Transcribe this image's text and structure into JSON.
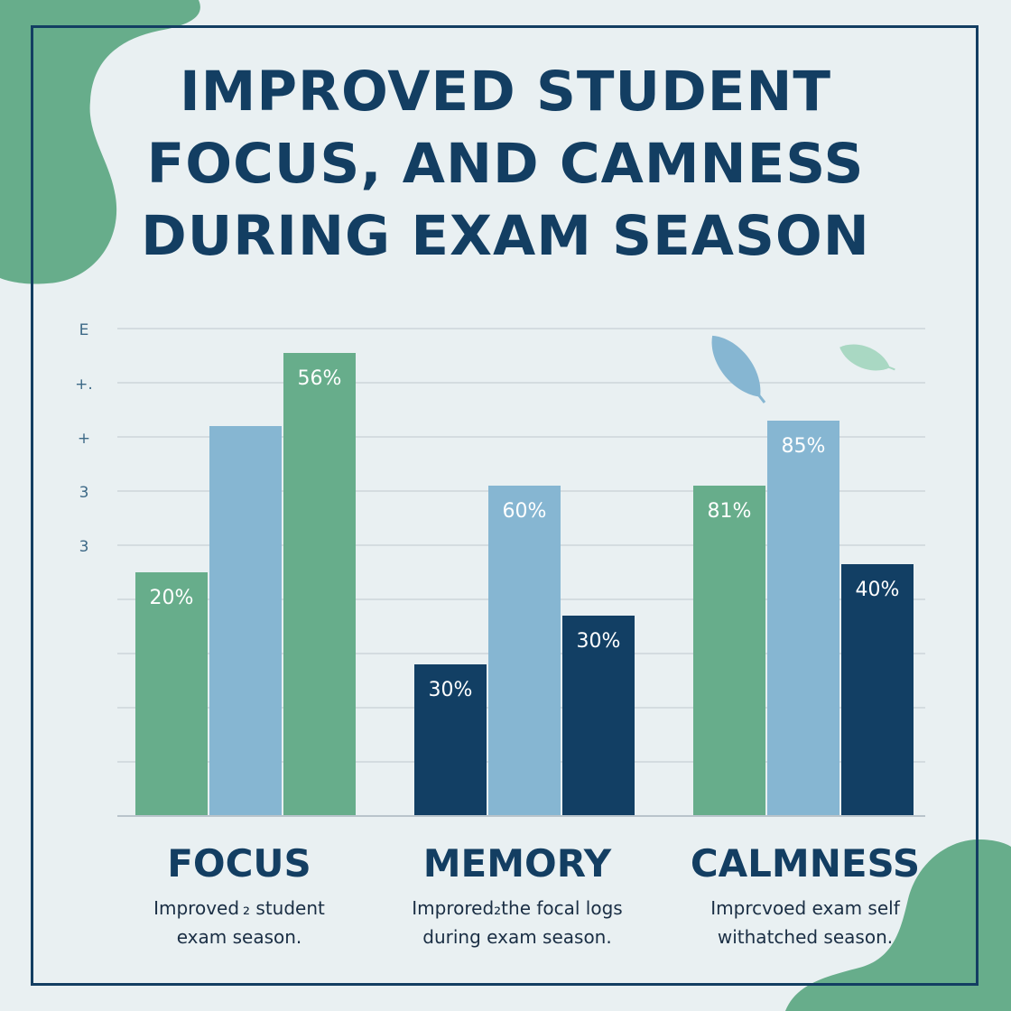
{
  "title": "IMPROVED STUDENT FOCUS, AND CAMNESS DURING EXAM SEASON",
  "colors": {
    "background": "#e9f0f2",
    "frame": "#133e62",
    "title": "#133e62",
    "green": "#67ad8b",
    "light_blue": "#86b6d2",
    "navy": "#123f64",
    "grid": "#cdd5da",
    "tick": "#3d6987"
  },
  "chart_data": {
    "type": "bar",
    "title": "IMPROVED STUDENT FOCUS, AND CAMNESS DURING EXAM SEASON",
    "xlabel": "",
    "ylabel": "",
    "y_tick_labels": [
      "E",
      "+.",
      "+",
      "3",
      "3"
    ],
    "ylim": [
      0,
      9
    ],
    "grid": true,
    "categories": [
      "FOCUS",
      "MEMORY",
      "CALMNESS"
    ],
    "category_descriptions": [
      [
        "Improved ₂ student",
        "exam season."
      ],
      [
        "Improred₂the focal logs",
        "during exam season."
      ],
      [
        "Imprcvoed exam self",
        "withatched season."
      ]
    ],
    "bars": [
      [
        {
          "color": "green",
          "value": 4.5,
          "label": "20%"
        },
        {
          "color": "light_blue",
          "value": 7.2,
          "label": ""
        },
        {
          "color": "green",
          "value": 8.55,
          "label": "56%"
        }
      ],
      [
        {
          "color": "navy",
          "value": 2.8,
          "label": "30%"
        },
        {
          "color": "light_blue",
          "value": 6.1,
          "label": "60%"
        },
        {
          "color": "navy",
          "value": 3.7,
          "label": "30%"
        }
      ],
      [
        {
          "color": "green",
          "value": 6.1,
          "label": "81%"
        },
        {
          "color": "light_blue",
          "value": 7.3,
          "label": "85%"
        },
        {
          "color": "navy",
          "value": 4.65,
          "label": "40%"
        }
      ]
    ]
  }
}
